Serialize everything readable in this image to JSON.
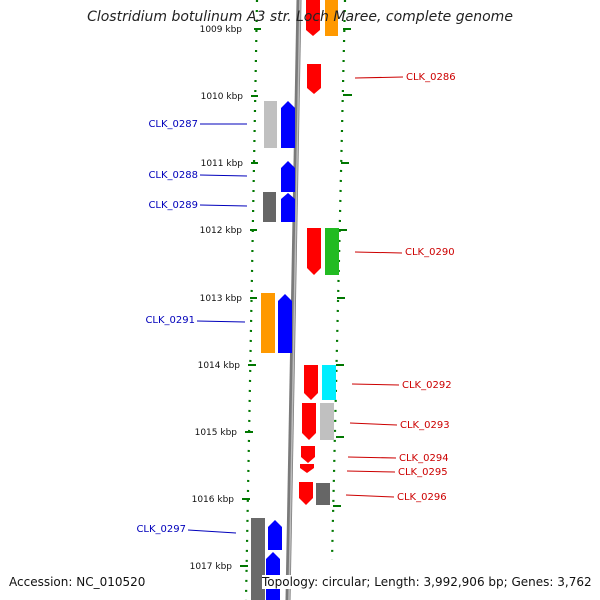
{
  "title": "Clostridium botulinum A3 str. Loch Maree, complete genome",
  "accession": "Accession: NC_010520",
  "topology": "Topology: circular; Length: 3,992,906 bp; Genes: 3,762",
  "colors": {
    "forward": "#0000ff",
    "reverse": "#ff0000",
    "ticks": "#007700",
    "label_left": "#0000bb",
    "label_right": "#cc0000",
    "backbone": "#888888"
  },
  "ticks": [
    {
      "label": "1009 kbp"
    },
    {
      "label": "1010 kbp"
    },
    {
      "label": "1011 kbp"
    },
    {
      "label": "1012 kbp"
    },
    {
      "label": "1013 kbp"
    },
    {
      "label": "1014 kbp"
    },
    {
      "label": "1015 kbp"
    },
    {
      "label": "1016 kbp"
    },
    {
      "label": "1017 kbp"
    }
  ],
  "labels_left": [
    {
      "text": "CLK_0287"
    },
    {
      "text": "CLK_0288"
    },
    {
      "text": "CLK_0289"
    },
    {
      "text": "CLK_0291"
    },
    {
      "text": "CLK_0297"
    }
  ],
  "labels_right": [
    {
      "text": "CLK_0286"
    },
    {
      "text": "CLK_0290"
    },
    {
      "text": "CLK_0292"
    },
    {
      "text": "CLK_0293"
    },
    {
      "text": "CLK_0294"
    },
    {
      "text": "CLK_0295"
    },
    {
      "text": "CLK_0296"
    }
  ]
}
